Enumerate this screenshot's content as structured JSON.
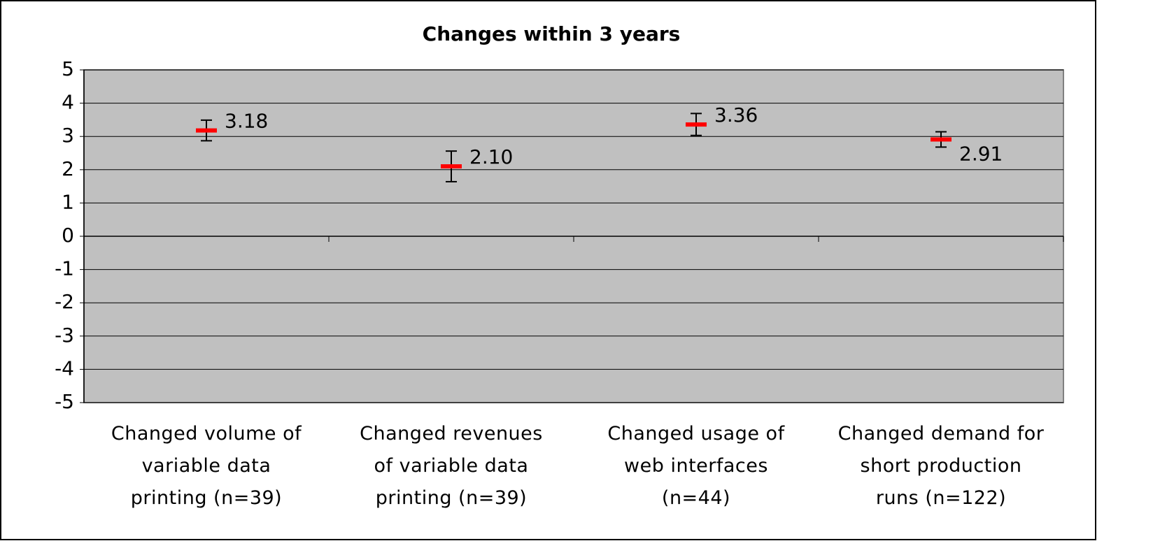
{
  "chart_data": {
    "type": "errorbar",
    "title": "Changes within 3 years",
    "categories": [
      "Changed volume of\nvariable data\nprinting (n=39)",
      "Changed revenues\nof variable data\nprinting (n=39)",
      "Changed usage of\nweb interfaces\n(n=44)",
      "Changed demand for\nshort production\nruns (n=122)"
    ],
    "series": [
      {
        "color": "#ff0000",
        "error_color": "#000000",
        "values": [
          3.18,
          2.1,
          3.36,
          2.91
        ],
        "value_labels": [
          "3.18",
          "2.10",
          "3.36",
          "2.91"
        ],
        "errors": [
          0.31,
          0.46,
          0.33,
          0.23
        ]
      }
    ],
    "ylim": [
      -5,
      5
    ],
    "yticks": [
      -5,
      -4,
      -3,
      -2,
      -1,
      0,
      1,
      2,
      3,
      4,
      5
    ],
    "grid": true,
    "plot_background": "#c0c0c0"
  }
}
